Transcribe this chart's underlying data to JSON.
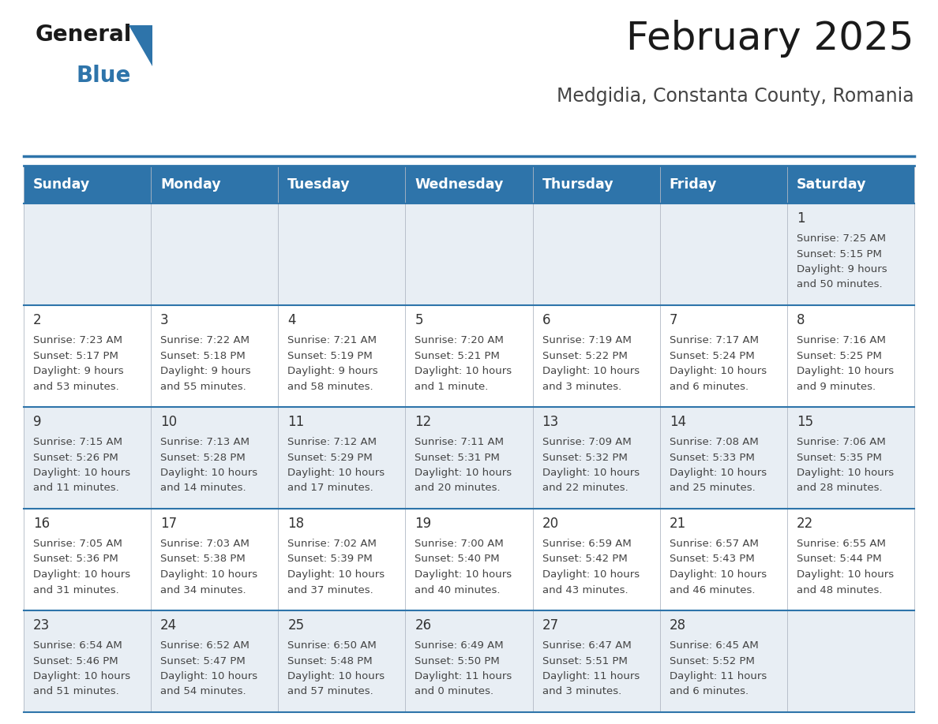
{
  "title": "February 2025",
  "subtitle": "Medgidia, Constanta County, Romania",
  "header_bg": "#2E74AA",
  "header_text_color": "#FFFFFF",
  "day_names": [
    "Sunday",
    "Monday",
    "Tuesday",
    "Wednesday",
    "Thursday",
    "Friday",
    "Saturday"
  ],
  "row0_bg": "#E8EEF4",
  "row1_bg": "#FFFFFF",
  "border_color": "#2E74AA",
  "cell_text_color": "#444444",
  "day_number_color": "#333333",
  "calendar_data": [
    [
      {
        "day": null,
        "sunrise": null,
        "sunset": null,
        "daylight": null
      },
      {
        "day": null,
        "sunrise": null,
        "sunset": null,
        "daylight": null
      },
      {
        "day": null,
        "sunrise": null,
        "sunset": null,
        "daylight": null
      },
      {
        "day": null,
        "sunrise": null,
        "sunset": null,
        "daylight": null
      },
      {
        "day": null,
        "sunrise": null,
        "sunset": null,
        "daylight": null
      },
      {
        "day": null,
        "sunrise": null,
        "sunset": null,
        "daylight": null
      },
      {
        "day": "1",
        "sunrise": "7:25 AM",
        "sunset": "5:15 PM",
        "daylight": "9 hours\nand 50 minutes."
      }
    ],
    [
      {
        "day": "2",
        "sunrise": "7:23 AM",
        "sunset": "5:17 PM",
        "daylight": "9 hours\nand 53 minutes."
      },
      {
        "day": "3",
        "sunrise": "7:22 AM",
        "sunset": "5:18 PM",
        "daylight": "9 hours\nand 55 minutes."
      },
      {
        "day": "4",
        "sunrise": "7:21 AM",
        "sunset": "5:19 PM",
        "daylight": "9 hours\nand 58 minutes."
      },
      {
        "day": "5",
        "sunrise": "7:20 AM",
        "sunset": "5:21 PM",
        "daylight": "10 hours\nand 1 minute."
      },
      {
        "day": "6",
        "sunrise": "7:19 AM",
        "sunset": "5:22 PM",
        "daylight": "10 hours\nand 3 minutes."
      },
      {
        "day": "7",
        "sunrise": "7:17 AM",
        "sunset": "5:24 PM",
        "daylight": "10 hours\nand 6 minutes."
      },
      {
        "day": "8",
        "sunrise": "7:16 AM",
        "sunset": "5:25 PM",
        "daylight": "10 hours\nand 9 minutes."
      }
    ],
    [
      {
        "day": "9",
        "sunrise": "7:15 AM",
        "sunset": "5:26 PM",
        "daylight": "10 hours\nand 11 minutes."
      },
      {
        "day": "10",
        "sunrise": "7:13 AM",
        "sunset": "5:28 PM",
        "daylight": "10 hours\nand 14 minutes."
      },
      {
        "day": "11",
        "sunrise": "7:12 AM",
        "sunset": "5:29 PM",
        "daylight": "10 hours\nand 17 minutes."
      },
      {
        "day": "12",
        "sunrise": "7:11 AM",
        "sunset": "5:31 PM",
        "daylight": "10 hours\nand 20 minutes."
      },
      {
        "day": "13",
        "sunrise": "7:09 AM",
        "sunset": "5:32 PM",
        "daylight": "10 hours\nand 22 minutes."
      },
      {
        "day": "14",
        "sunrise": "7:08 AM",
        "sunset": "5:33 PM",
        "daylight": "10 hours\nand 25 minutes."
      },
      {
        "day": "15",
        "sunrise": "7:06 AM",
        "sunset": "5:35 PM",
        "daylight": "10 hours\nand 28 minutes."
      }
    ],
    [
      {
        "day": "16",
        "sunrise": "7:05 AM",
        "sunset": "5:36 PM",
        "daylight": "10 hours\nand 31 minutes."
      },
      {
        "day": "17",
        "sunrise": "7:03 AM",
        "sunset": "5:38 PM",
        "daylight": "10 hours\nand 34 minutes."
      },
      {
        "day": "18",
        "sunrise": "7:02 AM",
        "sunset": "5:39 PM",
        "daylight": "10 hours\nand 37 minutes."
      },
      {
        "day": "19",
        "sunrise": "7:00 AM",
        "sunset": "5:40 PM",
        "daylight": "10 hours\nand 40 minutes."
      },
      {
        "day": "20",
        "sunrise": "6:59 AM",
        "sunset": "5:42 PM",
        "daylight": "10 hours\nand 43 minutes."
      },
      {
        "day": "21",
        "sunrise": "6:57 AM",
        "sunset": "5:43 PM",
        "daylight": "10 hours\nand 46 minutes."
      },
      {
        "day": "22",
        "sunrise": "6:55 AM",
        "sunset": "5:44 PM",
        "daylight": "10 hours\nand 48 minutes."
      }
    ],
    [
      {
        "day": "23",
        "sunrise": "6:54 AM",
        "sunset": "5:46 PM",
        "daylight": "10 hours\nand 51 minutes."
      },
      {
        "day": "24",
        "sunrise": "6:52 AM",
        "sunset": "5:47 PM",
        "daylight": "10 hours\nand 54 minutes."
      },
      {
        "day": "25",
        "sunrise": "6:50 AM",
        "sunset": "5:48 PM",
        "daylight": "10 hours\nand 57 minutes."
      },
      {
        "day": "26",
        "sunrise": "6:49 AM",
        "sunset": "5:50 PM",
        "daylight": "11 hours\nand 0 minutes."
      },
      {
        "day": "27",
        "sunrise": "6:47 AM",
        "sunset": "5:51 PM",
        "daylight": "11 hours\nand 3 minutes."
      },
      {
        "day": "28",
        "sunrise": "6:45 AM",
        "sunset": "5:52 PM",
        "daylight": "11 hours\nand 6 minutes."
      },
      {
        "day": null,
        "sunrise": null,
        "sunset": null,
        "daylight": null
      }
    ]
  ]
}
